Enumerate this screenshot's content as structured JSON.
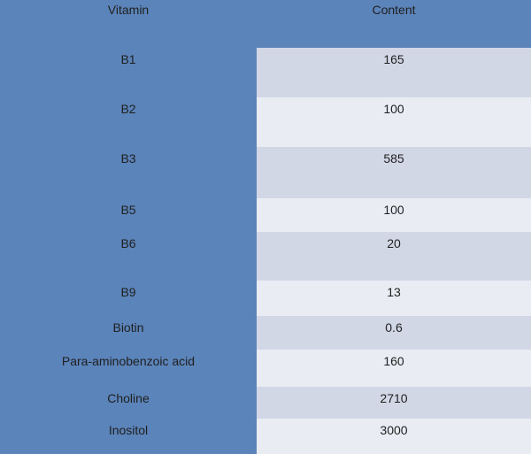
{
  "colors": {
    "background": "#5b84ba",
    "row_stripe_dark": "#d2d7e6",
    "row_stripe_light": "#e9ecf3",
    "text": "#1f1f1f"
  },
  "table": {
    "header": {
      "vitamin": "Vitamin",
      "content": "Content"
    },
    "rows": [
      {
        "label": "B1",
        "value": "165"
      },
      {
        "label": "B2",
        "value": "100"
      },
      {
        "label": "B3",
        "value": "585"
      },
      {
        "label": "B5",
        "value": "100"
      },
      {
        "label": "B6",
        "value": "20"
      },
      {
        "label": "B9",
        "value": "13"
      },
      {
        "label": "Biotin",
        "value": "0.6"
      },
      {
        "label": "Para-aminobenzoic acid",
        "value": "160"
      },
      {
        "label": "Choline",
        "value": "2710"
      },
      {
        "label": "Inositol",
        "value": "3000"
      }
    ]
  },
  "chart_data": {
    "type": "table",
    "title": "",
    "columns": [
      "Vitamin",
      "Content"
    ],
    "rows": [
      [
        "B1",
        165
      ],
      [
        "B2",
        100
      ],
      [
        "B3",
        585
      ],
      [
        "B5",
        100
      ],
      [
        "B6",
        20
      ],
      [
        "B9",
        13
      ],
      [
        "Biotin",
        0.6
      ],
      [
        "Para-aminobenzoic acid",
        160
      ],
      [
        "Choline",
        2710
      ],
      [
        "Inositol",
        3000
      ]
    ],
    "layout_hints": {
      "stripes": "alternating lavender/pale on Content column only",
      "background": "slate blue",
      "text_align": "center, top of cell"
    }
  }
}
